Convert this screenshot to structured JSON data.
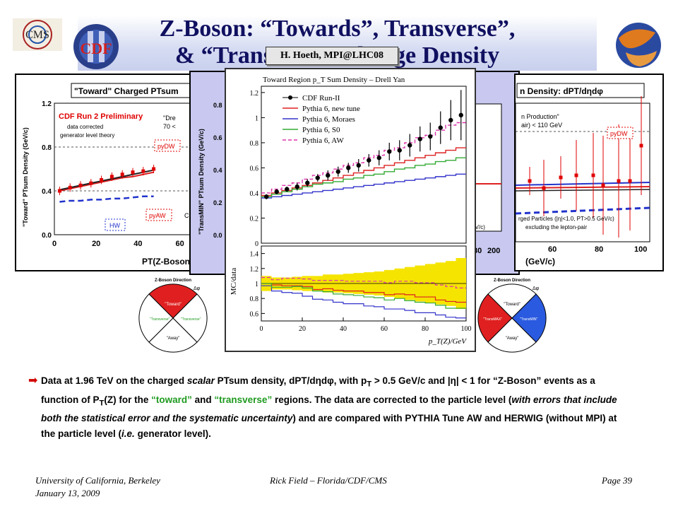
{
  "slide": {
    "title_line1": "Z-Boson: “Towards”, Transverse”,",
    "title_line2": "& “TransMIN” Charge Density",
    "author_box": "H. Hoeth, MPI@LHC08",
    "footer_left_line1": "University of California, Berkeley",
    "footer_left_line2": "January 13, 2009",
    "footer_center": "Rick Field – Florida/CDF/CMS",
    "footer_right": "Page 39",
    "logo_left_text": "CMS",
    "logo_cdf_text": "CDF"
  },
  "description": {
    "p1": "Data at 1.96 TeV on the charged ",
    "p1_scalar": "scalar",
    "p2": " PTsum density, dPT/dηdφ, with p",
    "p2_sub": "T",
    "p3": " > 0.5 GeV/c and |η| < 1 for “Z-Boson” events as a function of P",
    "p3_sub": "T",
    "p4": "(Z) for the ",
    "toward": "“toward”",
    "and": " and ",
    "transverse": "“transverse”",
    "p5": " regions.  The data are corrected to the particle level (",
    "p5_italic": "with errors that include both the statistical error and the systematic uncertainty",
    "p6": ") and are compared with PYTHIA Tune AW and HERWIG (without MPI) at the particle level (",
    "p6_italic": "i.e.",
    "p7": " generator level)."
  },
  "left_panel": {
    "title": "\"Toward\" Charged PTsum",
    "prelim": "CDF Run 2 Preliminary",
    "note": "data corrected\ngenerator level theory",
    "cut1": "\"Dre",
    "cut2": "70 <",
    "ylabel": "\"Toward\" PTsum Density (GeV/c)",
    "xlabel": "PT(Z-Boson",
    "labels": [
      "pyDW",
      "pyAW",
      "HW",
      "C"
    ]
  },
  "right_panel": {
    "title": "n Density: dPT/dηdφ",
    "note1": "n Production\"",
    "note2": "air) < 110 GeV",
    "note3": "rged Particles (|η|<1.0, PT>0.5 GeV/c)",
    "note4": "excluding the lepton-pair",
    "xlabel": "(GeV/c)",
    "labels": [
      "pyDW"
    ]
  },
  "mid_panel": {
    "ylabel": "\"TransMIN\" PTsum Density (GeV/c)",
    "ylabel_partial": "GeV/c)"
  },
  "wheel_left": {
    "dir": "Z-Boson Direction",
    "dphi": "Δφ",
    "toward": "\"Toward\"",
    "t1": "\"Transverse\"",
    "t2": "\"Transverse\"",
    "away": "\"Away\""
  },
  "wheel_right": {
    "dir": "Z-Boson Direction",
    "dphi": "Δφ",
    "toward": "\"Toward\"",
    "t1": "\"TransMAX\"",
    "t2": "\"TransMIN\"",
    "away": "\"Away\""
  },
  "chart_data": [
    {
      "type": "line",
      "title": "Toward Region p_T Sum Density – Drell Yan",
      "xlabel": "p_T(Z)/GeV",
      "ylabel": "",
      "xlim": [
        0,
        100
      ],
      "ylim": [
        0,
        1.25
      ],
      "xticks": [
        "0",
        "20",
        "40",
        "60",
        "80",
        "100"
      ],
      "yticks": [
        "0",
        "0.2",
        "0.4",
        "0.6",
        "0.8",
        "1",
        "1.2"
      ],
      "legend_position": "top-left",
      "x": [
        2.5,
        7.5,
        12.5,
        17.5,
        22.5,
        27.5,
        32.5,
        37.5,
        42.5,
        47.5,
        52.5,
        57.5,
        62.5,
        67.5,
        72.5,
        77.5,
        82.5,
        87.5,
        92.5,
        97.5
      ],
      "series": [
        {
          "name": "CDF Run-II",
          "color": "#000000",
          "style": "points",
          "values": [
            0.37,
            0.41,
            0.43,
            0.45,
            0.48,
            0.52,
            0.54,
            0.57,
            0.6,
            0.62,
            0.66,
            0.68,
            0.73,
            0.74,
            0.78,
            0.83,
            0.85,
            0.92,
            0.98,
            1.02
          ]
        },
        {
          "name": "Pythia 6, new tune",
          "color": "#dd2222",
          "style": "line",
          "values": [
            0.38,
            0.4,
            0.42,
            0.44,
            0.46,
            0.48,
            0.5,
            0.52,
            0.54,
            0.56,
            0.58,
            0.6,
            0.62,
            0.64,
            0.66,
            0.68,
            0.7,
            0.72,
            0.74,
            0.76
          ]
        },
        {
          "name": "Pythia 6, Moraes",
          "color": "#3333cc",
          "style": "line",
          "values": [
            0.36,
            0.37,
            0.38,
            0.39,
            0.4,
            0.41,
            0.42,
            0.43,
            0.44,
            0.45,
            0.46,
            0.47,
            0.48,
            0.49,
            0.5,
            0.51,
            0.52,
            0.53,
            0.54,
            0.55
          ]
        },
        {
          "name": "Pythia 6, S0",
          "color": "#33aa33",
          "style": "line",
          "values": [
            0.37,
            0.39,
            0.41,
            0.43,
            0.45,
            0.47,
            0.48,
            0.49,
            0.51,
            0.52,
            0.54,
            0.55,
            0.57,
            0.59,
            0.6,
            0.62,
            0.63,
            0.65,
            0.66,
            0.68
          ]
        },
        {
          "name": "Pythia 6, AW",
          "color": "#dd33aa",
          "style": "dashed",
          "values": [
            0.4,
            0.43,
            0.46,
            0.48,
            0.51,
            0.54,
            0.56,
            0.59,
            0.62,
            0.64,
            0.68,
            0.7,
            0.74,
            0.76,
            0.8,
            0.84,
            0.86,
            0.9,
            0.94,
            0.96
          ]
        }
      ],
      "errors": [
        0.02,
        0.02,
        0.02,
        0.03,
        0.03,
        0.03,
        0.04,
        0.04,
        0.04,
        0.05,
        0.05,
        0.06,
        0.07,
        0.08,
        0.09,
        0.1,
        0.11,
        0.13,
        0.16,
        0.2
      ]
    },
    {
      "type": "line",
      "title": "",
      "xlabel": "p_T(Z)/GeV",
      "ylabel": "MC/data",
      "xlim": [
        0,
        100
      ],
      "ylim": [
        0.5,
        1.5
      ],
      "yticks": [
        "0.6",
        "0.8",
        "1",
        "1.2",
        "1.4"
      ],
      "band_lo": [
        0.9,
        0.92,
        0.92,
        0.91,
        0.9,
        0.9,
        0.88,
        0.88,
        0.87,
        0.86,
        0.85,
        0.84,
        0.82,
        0.8,
        0.78,
        0.76,
        0.74,
        0.72,
        0.7,
        0.66
      ],
      "band_hi": [
        1.1,
        1.08,
        1.08,
        1.09,
        1.1,
        1.1,
        1.12,
        1.12,
        1.13,
        1.14,
        1.15,
        1.16,
        1.18,
        1.2,
        1.22,
        1.24,
        1.26,
        1.28,
        1.3,
        1.34
      ],
      "series": [
        {
          "name": "Pythia 6, new tune",
          "values": [
            1.0,
            0.98,
            0.97,
            0.97,
            0.96,
            0.92,
            0.93,
            0.91,
            0.9,
            0.9,
            0.88,
            0.88,
            0.85,
            0.86,
            0.85,
            0.82,
            0.82,
            0.78,
            0.76,
            0.75
          ]
        },
        {
          "name": "Pythia 6, Moraes",
          "values": [
            0.97,
            0.9,
            0.88,
            0.87,
            0.83,
            0.79,
            0.78,
            0.75,
            0.73,
            0.73,
            0.7,
            0.69,
            0.66,
            0.66,
            0.64,
            0.61,
            0.61,
            0.58,
            0.55,
            0.54
          ]
        },
        {
          "name": "Pythia 6, S0",
          "values": [
            1.0,
            0.95,
            0.95,
            0.96,
            0.94,
            0.9,
            0.89,
            0.86,
            0.85,
            0.84,
            0.82,
            0.81,
            0.78,
            0.8,
            0.77,
            0.75,
            0.74,
            0.71,
            0.67,
            0.67
          ]
        },
        {
          "name": "Pythia 6, AW",
          "values": [
            1.08,
            1.05,
            1.07,
            1.07,
            1.06,
            1.04,
            1.04,
            1.04,
            1.03,
            1.03,
            1.03,
            1.03,
            1.01,
            1.03,
            1.03,
            1.01,
            1.01,
            0.98,
            0.96,
            0.94
          ]
        }
      ],
      "xticks": [
        "0",
        "20",
        "40",
        "60",
        "80",
        "100"
      ]
    },
    {
      "type": "line",
      "title": "\"Toward\" Charged PTsum",
      "xlabel": "PT(Z-Boson",
      "ylabel": "\"Toward\" PTsum Density (GeV/c)",
      "xlim": [
        0,
        100
      ],
      "ylim": [
        0,
        1.2
      ],
      "xticks": [
        "0",
        "20",
        "40",
        "60"
      ],
      "yticks": [
        "0.0",
        "0.4",
        "0.8",
        "1.2"
      ],
      "series": [
        {
          "name": "Data",
          "values": [
            0.4,
            0.43,
            0.45,
            0.47,
            0.5,
            0.53,
            0.55,
            0.57,
            0.58,
            0.6
          ]
        },
        {
          "name": "pyDW",
          "values": [
            0.4,
            0.42,
            0.44,
            0.46,
            0.48,
            0.5,
            0.52,
            0.53,
            0.55,
            0.57
          ]
        },
        {
          "name": "pyAW",
          "values": [
            0.41,
            0.43,
            0.45,
            0.47,
            0.49,
            0.51,
            0.53,
            0.55,
            0.57,
            0.59
          ]
        },
        {
          "name": "HW",
          "values": [
            0.3,
            0.31,
            0.31,
            0.32,
            0.32,
            0.33,
            0.33,
            0.34,
            0.35,
            0.35
          ]
        }
      ],
      "x": [
        2.5,
        7.5,
        12.5,
        17.5,
        22.5,
        27.5,
        32.5,
        37.5,
        42.5,
        47.5
      ]
    }
  ]
}
